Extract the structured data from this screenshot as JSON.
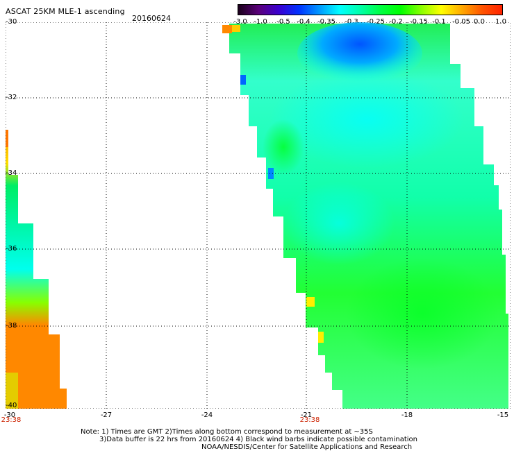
{
  "header": {
    "title": "ASCAT 25KM MLE-1 ascending",
    "date": "20160624"
  },
  "colorbar": {
    "labels": [
      "-3.0",
      "-1.0",
      "-0.5",
      "-0.4",
      "-0.35",
      "-0.3",
      "-0.25",
      "-0.2",
      "-0.15",
      "-0.1",
      "-0.05",
      "0.0",
      "1.0"
    ],
    "colors": [
      "#1a001a",
      "#5a007a",
      "#3a00d0",
      "#0033ff",
      "#0099ff",
      "#00ffff",
      "#00ffaa",
      "#00ff44",
      "#00ff00",
      "#88ff00",
      "#ffff00",
      "#ffaa00",
      "#ff5500",
      "#ff2200"
    ]
  },
  "map": {
    "lat_labels": [
      "-30",
      "-32",
      "-34",
      "-36",
      "-38",
      "-40"
    ],
    "lon_labels": [
      "-30",
      "-27",
      "-24",
      "-21",
      "-18",
      "-15"
    ],
    "swath_time_labels": [
      "23:38",
      "23:38"
    ],
    "lon_range": [
      -30,
      -15
    ],
    "lat_range": [
      -40,
      -30
    ],
    "grid": "dotted"
  },
  "notes": {
    "line1": "Note: 1) Times are GMT 2)Times along bottom correspond to measurement at ~35S",
    "line2": "3)Data buffer is 22 hrs from 20160624 4) Black wind barbs indicate possible contamination",
    "line3": "NOAA/NESDIS/Center for Satellite Applications and Research"
  }
}
